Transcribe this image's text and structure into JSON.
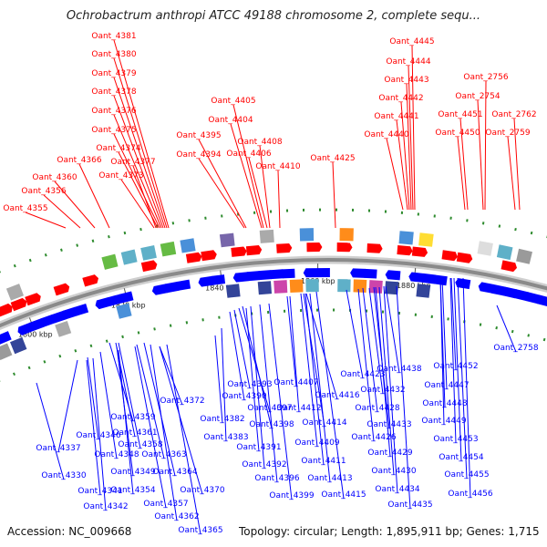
{
  "title": "Ochrobactrum anthropi ATCC 49188 chromosome 2, complete sequ...",
  "footer": {
    "accession": "Accession: NC_009668",
    "topology": "Topology: circular; Length: 1,895,911 bp; Genes: 1,715"
  },
  "scale_labels": [
    "1760 kbp",
    "1780 kbp",
    "1800 kbp",
    "1820 kbp",
    "1840 kbp",
    "1860 kbp",
    "1880 kbp"
  ],
  "top_labels": [
    "Oant_4381",
    "Oant_4380",
    "Oant_4379",
    "Oant_4378",
    "Oant_4376",
    "Oant_4375",
    "Oant_4374",
    "Oant_4377",
    "Oant_4373",
    "Oant_4366",
    "Oant_4360",
    "Oant_4356",
    "Oant_4355",
    "Oant_4405",
    "Oant_4404",
    "Oant_4395",
    "Oant_4394",
    "Oant_4408",
    "Oant_4406",
    "Oant_4410",
    "Oant_4425",
    "Oant_4445",
    "Oant_4444",
    "Oant_4443",
    "Oant_4442",
    "Oant_4441",
    "Oant_4440",
    "Oant_4451",
    "Oant_4450",
    "Oant_2756",
    "Oant_2754",
    "Oant_2762",
    "Oant_2759"
  ],
  "bottom_labels": [
    "Oant_2758",
    "Oant_4372",
    "Oant_4382",
    "Oant_4393",
    "Oant_4390",
    "Oant_4397",
    "Oant_4398",
    "Oant_4383",
    "Oant_4391",
    "Oant_4392",
    "Oant_4396",
    "Oant_4399",
    "Oant_4407",
    "Oant_4412",
    "Oant_4416",
    "Oant_4414",
    "Oant_4409",
    "Oant_4411",
    "Oant_4413",
    "Oant_4415",
    "Oant_4423",
    "Oant_4438",
    "Oant_4432",
    "Oant_4428",
    "Oant_4433",
    "Oant_4426",
    "Oant_4429",
    "Oant_4430",
    "Oant_4434",
    "Oant_4435",
    "Oant_4452",
    "Oant_4447",
    "Oant_4448",
    "Oant_4449",
    "Oant_4453",
    "Oant_4454",
    "Oant_4455",
    "Oant_4456",
    "Oant_4359",
    "Oant_4361",
    "Oant_4358",
    "Oant_4346",
    "Oant_4337",
    "Oant_4348",
    "Oant_4363",
    "Oant_4349",
    "Oant_4364",
    "Oant_4330",
    "Oant_4354",
    "Oant_4341",
    "Oant_4370",
    "Oant_4357",
    "Oant_4342",
    "Oant_4362",
    "Oant_4365"
  ],
  "colors": {
    "forward_gene": "#ff0000",
    "reverse_gene": "#0000ff",
    "backbone": "#8a8a8a",
    "tick": "#2e8b2e",
    "title_text": "#222222"
  }
}
